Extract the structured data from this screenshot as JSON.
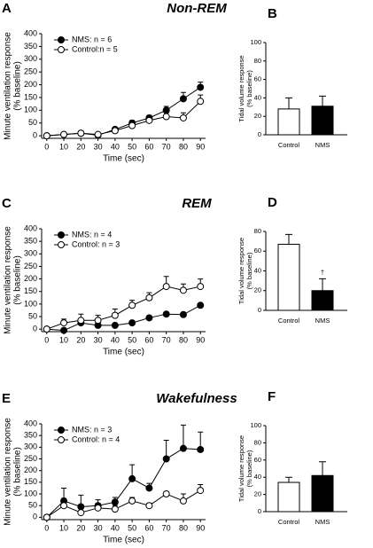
{
  "chart_data": [
    {
      "type": "line",
      "label": "A",
      "title": "Non-REM",
      "ylabel": [
        "Minute ventilation response",
        "(% baseline)"
      ],
      "xlabel": "Time (sec)",
      "x": [
        0,
        10,
        20,
        30,
        40,
        50,
        60,
        70,
        80,
        90
      ],
      "xlim": [
        -3,
        93
      ],
      "xticks": [
        0,
        10,
        20,
        30,
        40,
        50,
        60,
        70,
        80,
        90
      ],
      "ylim": [
        -10,
        400
      ],
      "yticks": [
        0,
        50,
        100,
        150,
        200,
        250,
        300,
        350,
        400
      ],
      "series": [
        {
          "name": "NMS: n = 6",
          "color": "#000000",
          "values": [
            0,
            5,
            10,
            2,
            25,
            50,
            70,
            100,
            145,
            190
          ],
          "errors": [
            0,
            3,
            5,
            3,
            8,
            10,
            10,
            15,
            25,
            20
          ]
        },
        {
          "name": "Control:n = 5",
          "color": "#ffffff",
          "values": [
            0,
            5,
            10,
            5,
            20,
            40,
            60,
            75,
            70,
            135
          ],
          "errors": [
            0,
            3,
            5,
            3,
            5,
            8,
            15,
            15,
            20,
            25
          ]
        }
      ]
    },
    {
      "type": "bar",
      "label": "B",
      "ylabel": [
        "Tidal volume response",
        "(% baseline)"
      ],
      "categories": [
        "Control",
        "NMS"
      ],
      "values": [
        28,
        31
      ],
      "errors": [
        12,
        11
      ],
      "colors": [
        "#ffffff",
        "#000000"
      ],
      "ylim": [
        0,
        100
      ],
      "yticks": [
        0,
        20,
        40,
        60,
        80,
        100
      ]
    },
    {
      "type": "line",
      "label": "C",
      "title": "REM",
      "ylabel": [
        "Minute ventilation response",
        "(% baseline)"
      ],
      "xlabel": "Time (sec)",
      "x": [
        0,
        10,
        20,
        30,
        40,
        50,
        60,
        70,
        80,
        90
      ],
      "xlim": [
        -3,
        93
      ],
      "xticks": [
        0,
        10,
        20,
        30,
        40,
        50,
        60,
        70,
        80,
        90
      ],
      "ylim": [
        -10,
        400
      ],
      "yticks": [
        0,
        50,
        100,
        150,
        200,
        250,
        300,
        350,
        400
      ],
      "series": [
        {
          "name": "NMS: n = 4",
          "color": "#000000",
          "values": [
            0,
            -5,
            25,
            15,
            15,
            25,
            45,
            60,
            58,
            95
          ],
          "errors": [
            0,
            0,
            10,
            10,
            5,
            5,
            5,
            5,
            5,
            5
          ]
        },
        {
          "name": "Control: n = 3",
          "color": "#ffffff",
          "values": [
            0,
            25,
            35,
            35,
            55,
            95,
            125,
            170,
            155,
            170
          ],
          "errors": [
            0,
            15,
            25,
            20,
            25,
            20,
            20,
            40,
            25,
            30
          ]
        }
      ]
    },
    {
      "type": "bar",
      "label": "D",
      "ylabel": [
        "Tidal volume response",
        "(% baseline)"
      ],
      "categories": [
        "Control",
        "NMS"
      ],
      "values": [
        67,
        20
      ],
      "errors": [
        10,
        12
      ],
      "colors": [
        "#ffffff",
        "#000000"
      ],
      "ylim": [
        0,
        80
      ],
      "yticks": [
        0,
        20,
        40,
        60,
        80
      ],
      "annotation": "†"
    },
    {
      "type": "line",
      "label": "E",
      "title": "Wakefulness",
      "ylabel": [
        "Minute ventilation response",
        "(% baseline)"
      ],
      "xlabel": "Time (sec)",
      "x": [
        0,
        10,
        20,
        30,
        40,
        50,
        60,
        70,
        80,
        90
      ],
      "xlim": [
        -3,
        93
      ],
      "xticks": [
        0,
        10,
        20,
        30,
        40,
        50,
        60,
        70,
        80,
        90
      ],
      "ylim": [
        -10,
        400
      ],
      "yticks": [
        0,
        50,
        100,
        150,
        200,
        250,
        300,
        350,
        400
      ],
      "series": [
        {
          "name": "NMS: n = 3",
          "color": "#000000",
          "values": [
            0,
            70,
            45,
            50,
            65,
            165,
            125,
            250,
            295,
            290
          ],
          "errors": [
            0,
            55,
            50,
            25,
            20,
            60,
            20,
            80,
            100,
            75
          ]
        },
        {
          "name": "Control: n = 4",
          "color": "#ffffff",
          "values": [
            0,
            50,
            20,
            40,
            35,
            70,
            50,
            100,
            70,
            115
          ],
          "errors": [
            0,
            30,
            20,
            20,
            15,
            15,
            10,
            10,
            30,
            25
          ]
        }
      ]
    },
    {
      "type": "bar",
      "label": "F",
      "ylabel": [
        "Tidal volume response",
        "(% baseline)"
      ],
      "categories": [
        "Control",
        "NMS"
      ],
      "values": [
        34,
        42
      ],
      "errors": [
        6,
        16
      ],
      "colors": [
        "#ffffff",
        "#000000"
      ],
      "ylim": [
        0,
        100
      ],
      "yticks": [
        0,
        20,
        40,
        60,
        80,
        100
      ]
    }
  ]
}
